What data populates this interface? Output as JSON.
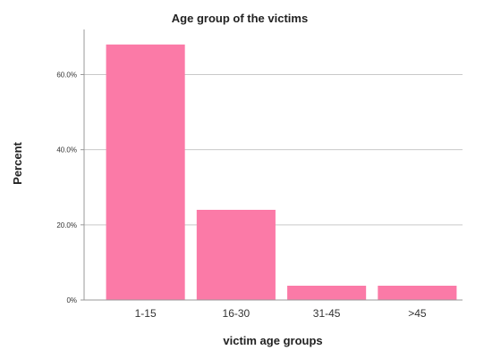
{
  "chart_data": {
    "type": "bar",
    "title": "Age group of the victims",
    "xlabel": "victim age groups",
    "ylabel": "Percent",
    "categories": [
      "1-15",
      "16-30",
      "31-45",
      ">45"
    ],
    "values": [
      68.0,
      24.0,
      3.8,
      3.8
    ],
    "ylim": [
      0,
      72
    ],
    "yticks": [
      0,
      20,
      40,
      60
    ],
    "ytick_labels": [
      "0%",
      "20.0%",
      "40.0%",
      "60.0%"
    ],
    "grid": "horizontal",
    "bar_color": "#fb7aa7",
    "grid_color": "#c9c9c9",
    "axis_color": "#999999"
  }
}
